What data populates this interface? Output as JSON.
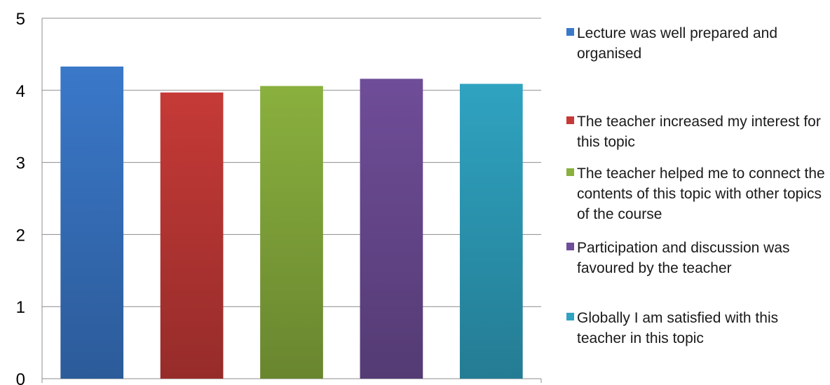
{
  "chart_data": {
    "type": "bar",
    "title": "",
    "xlabel": "",
    "ylabel": "",
    "ylim": [
      0,
      5
    ],
    "yticks": [
      "0",
      "1",
      "2",
      "3",
      "4",
      "5"
    ],
    "grid": true,
    "legend_position": "right",
    "series": [
      {
        "name": "Lecture was well prepared and organised",
        "value": 4.33,
        "color": "#3a78c9"
      },
      {
        "name": "The teacher increased my interest for this topic",
        "value": 3.97,
        "color": "#c53a37"
      },
      {
        "name": "The teacher helped me to connect the contents of this topic with other topics of the course",
        "value": 4.06,
        "color": "#8ab03e"
      },
      {
        "name": "Participation and discussion was favoured by the teacher",
        "value": 4.16,
        "color": "#6f4d98"
      },
      {
        "name": "Globally I am satisfied with this teacher in this topic",
        "value": 4.09,
        "color": "#2fa3c1"
      }
    ]
  }
}
